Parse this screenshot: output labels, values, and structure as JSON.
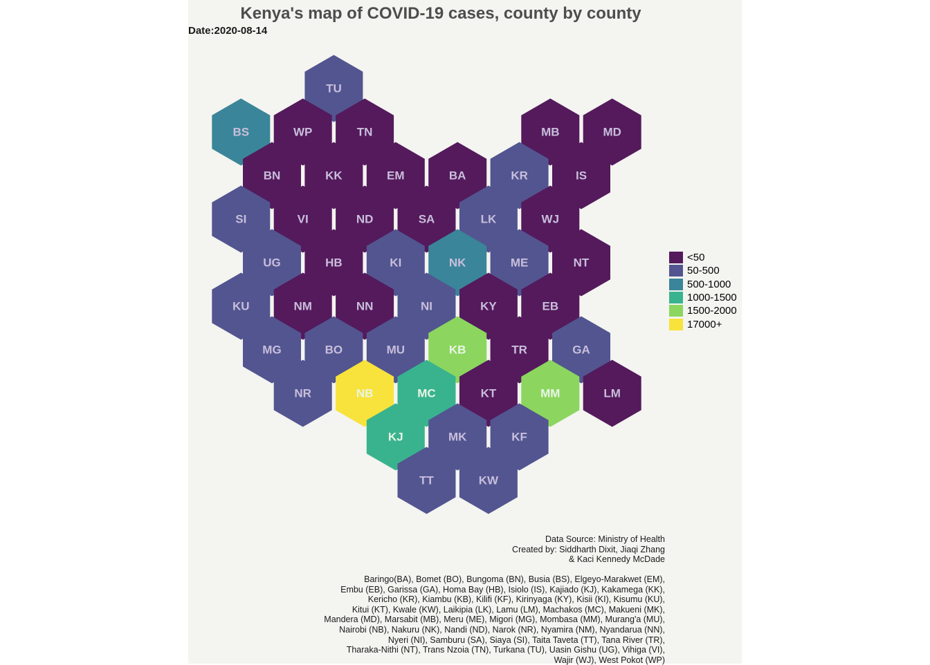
{
  "chart_data": {
    "type": "hex tile map",
    "title": "Kenya's map of COVID-19 cases, county by county",
    "subtitle": "Date:2020-08-14",
    "legend": {
      "placement": "right",
      "classes": [
        {
          "label": "<50",
          "color": "#541a5c"
        },
        {
          "label": "50-500",
          "color": "#525590"
        },
        {
          "label": "500-1000",
          "color": "#3a8599"
        },
        {
          "label": "1000-1500",
          "color": "#39b38e"
        },
        {
          "label": "1500-2000",
          "color": "#8cd65f"
        },
        {
          "label": "17000+",
          "color": "#f7e33c"
        }
      ]
    },
    "tiles": [
      {
        "code": "TU",
        "row": 0,
        "col": 1,
        "class": "50-500"
      },
      {
        "code": "BS",
        "row": 1,
        "col": 0,
        "class": "500-1000"
      },
      {
        "code": "WP",
        "row": 1,
        "col": 1,
        "class": "<50"
      },
      {
        "code": "TN",
        "row": 1,
        "col": 2,
        "class": "<50"
      },
      {
        "code": "MB",
        "row": 1,
        "col": 5,
        "class": "<50"
      },
      {
        "code": "MD",
        "row": 1,
        "col": 6,
        "class": "<50"
      },
      {
        "code": "BN",
        "row": 2,
        "col": 0,
        "class": "<50"
      },
      {
        "code": "KK",
        "row": 2,
        "col": 1,
        "class": "<50"
      },
      {
        "code": "EM",
        "row": 2,
        "col": 2,
        "class": "<50"
      },
      {
        "code": "BA",
        "row": 2,
        "col": 3,
        "class": "<50"
      },
      {
        "code": "KR",
        "row": 2,
        "col": 4,
        "class": "50-500"
      },
      {
        "code": "IS",
        "row": 2,
        "col": 5,
        "class": "<50"
      },
      {
        "code": "SI",
        "row": 3,
        "col": 0,
        "class": "50-500"
      },
      {
        "code": "VI",
        "row": 3,
        "col": 1,
        "class": "<50"
      },
      {
        "code": "ND",
        "row": 3,
        "col": 2,
        "class": "<50"
      },
      {
        "code": "SA",
        "row": 3,
        "col": 3,
        "class": "<50"
      },
      {
        "code": "LK",
        "row": 3,
        "col": 4,
        "class": "50-500"
      },
      {
        "code": "WJ",
        "row": 3,
        "col": 5,
        "class": "<50"
      },
      {
        "code": "UG",
        "row": 4,
        "col": 0,
        "class": "50-500"
      },
      {
        "code": "HB",
        "row": 4,
        "col": 1,
        "class": "<50"
      },
      {
        "code": "KI",
        "row": 4,
        "col": 2,
        "class": "50-500"
      },
      {
        "code": "NK",
        "row": 4,
        "col": 3,
        "class": "500-1000"
      },
      {
        "code": "ME",
        "row": 4,
        "col": 4,
        "class": "50-500"
      },
      {
        "code": "NT",
        "row": 4,
        "col": 5,
        "class": "<50"
      },
      {
        "code": "KU",
        "row": 5,
        "col": 0,
        "class": "50-500"
      },
      {
        "code": "NM",
        "row": 5,
        "col": 1,
        "class": "<50"
      },
      {
        "code": "NN",
        "row": 5,
        "col": 2,
        "class": "<50"
      },
      {
        "code": "NI",
        "row": 5,
        "col": 3,
        "class": "50-500"
      },
      {
        "code": "KY",
        "row": 5,
        "col": 4,
        "class": "<50"
      },
      {
        "code": "EB",
        "row": 5,
        "col": 5,
        "class": "<50"
      },
      {
        "code": "MG",
        "row": 6,
        "col": 0,
        "class": "50-500"
      },
      {
        "code": "BO",
        "row": 6,
        "col": 1,
        "class": "50-500"
      },
      {
        "code": "MU",
        "row": 6,
        "col": 2,
        "class": "50-500"
      },
      {
        "code": "KB",
        "row": 6,
        "col": 3,
        "class": "1500-2000"
      },
      {
        "code": "TR",
        "row": 6,
        "col": 4,
        "class": "<50"
      },
      {
        "code": "GA",
        "row": 6,
        "col": 5,
        "class": "50-500"
      },
      {
        "code": "NR",
        "row": 7,
        "col": 1,
        "class": "50-500"
      },
      {
        "code": "NB",
        "row": 7,
        "col": 2,
        "class": "17000+"
      },
      {
        "code": "MC",
        "row": 7,
        "col": 3,
        "class": "1000-1500"
      },
      {
        "code": "KT",
        "row": 7,
        "col": 4,
        "class": "<50"
      },
      {
        "code": "MM",
        "row": 7,
        "col": 5,
        "class": "1500-2000"
      },
      {
        "code": "LM",
        "row": 7,
        "col": 6,
        "class": "<50"
      },
      {
        "code": "KJ",
        "row": 8,
        "col": 2,
        "class": "1000-1500"
      },
      {
        "code": "MK",
        "row": 8,
        "col": 3,
        "class": "50-500"
      },
      {
        "code": "KF",
        "row": 8,
        "col": 4,
        "class": "50-500"
      },
      {
        "code": "TT",
        "row": 9,
        "col": 3,
        "class": "50-500"
      },
      {
        "code": "KW",
        "row": 9,
        "col": 4,
        "class": "50-500"
      }
    ]
  },
  "credits": [
    "Data Source: Ministry of Health",
    "Created by: Siddharth Dixit, Jiaqi Zhang",
    "& Kaci Kennedy McDade"
  ],
  "abbreviations": [
    "Baringo(BA), Bomet (BO), Bungoma (BN), Busia (BS), Elgeyo-Marakwet (EM),",
    "Embu (EB), Garissa (GA), Homa Bay (HB), Isiolo (IS), Kajiado (KJ), Kakamega (KK),",
    "Kericho (KR), Kiambu (KB), Kilifi (KF), Kirinyaga (KY), Kisii (KI), Kisumu (KU),",
    "Kitui (KT), Kwale (KW), Laikipia (LK), Lamu (LM), Machakos (MC), Makueni (MK),",
    "Mandera (MD), Marsabit (MB), Meru (ME), Migori (MG), Mombasa (MM), Murang'a (MU),",
    "Nairobi (NB), Nakuru (NK), Nandi (ND), Narok (NR), Nyamira (NM), Nyandarua (NN),",
    "Nyeri (NI), Samburu (SA), Siaya (SI), Taita Taveta (TT), Tana River (TR),",
    "Tharaka-Nithi (NT), Trans Nzoia (TN), Turkana (TU), Uasin Gishu (UG), Vihiga (VI),",
    "Wajir (WJ), West Pokot (WP)"
  ]
}
